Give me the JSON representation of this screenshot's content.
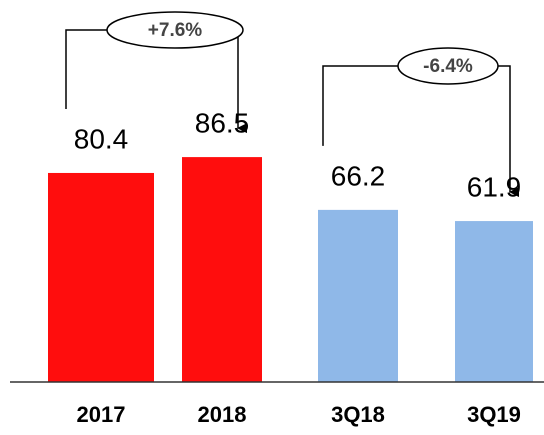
{
  "chart_data": {
    "type": "bar",
    "categories": [
      "2017",
      "2018",
      "3Q18",
      "3Q19"
    ],
    "values": [
      80.4,
      86.5,
      66.2,
      61.9
    ],
    "colors": [
      "#ff0d0d",
      "#ff0d0d",
      "#8fb8e8",
      "#8fb8e8"
    ],
    "ylim": [
      0,
      140
    ],
    "annotations": [
      "+7.6%",
      "-6.4%"
    ]
  }
}
